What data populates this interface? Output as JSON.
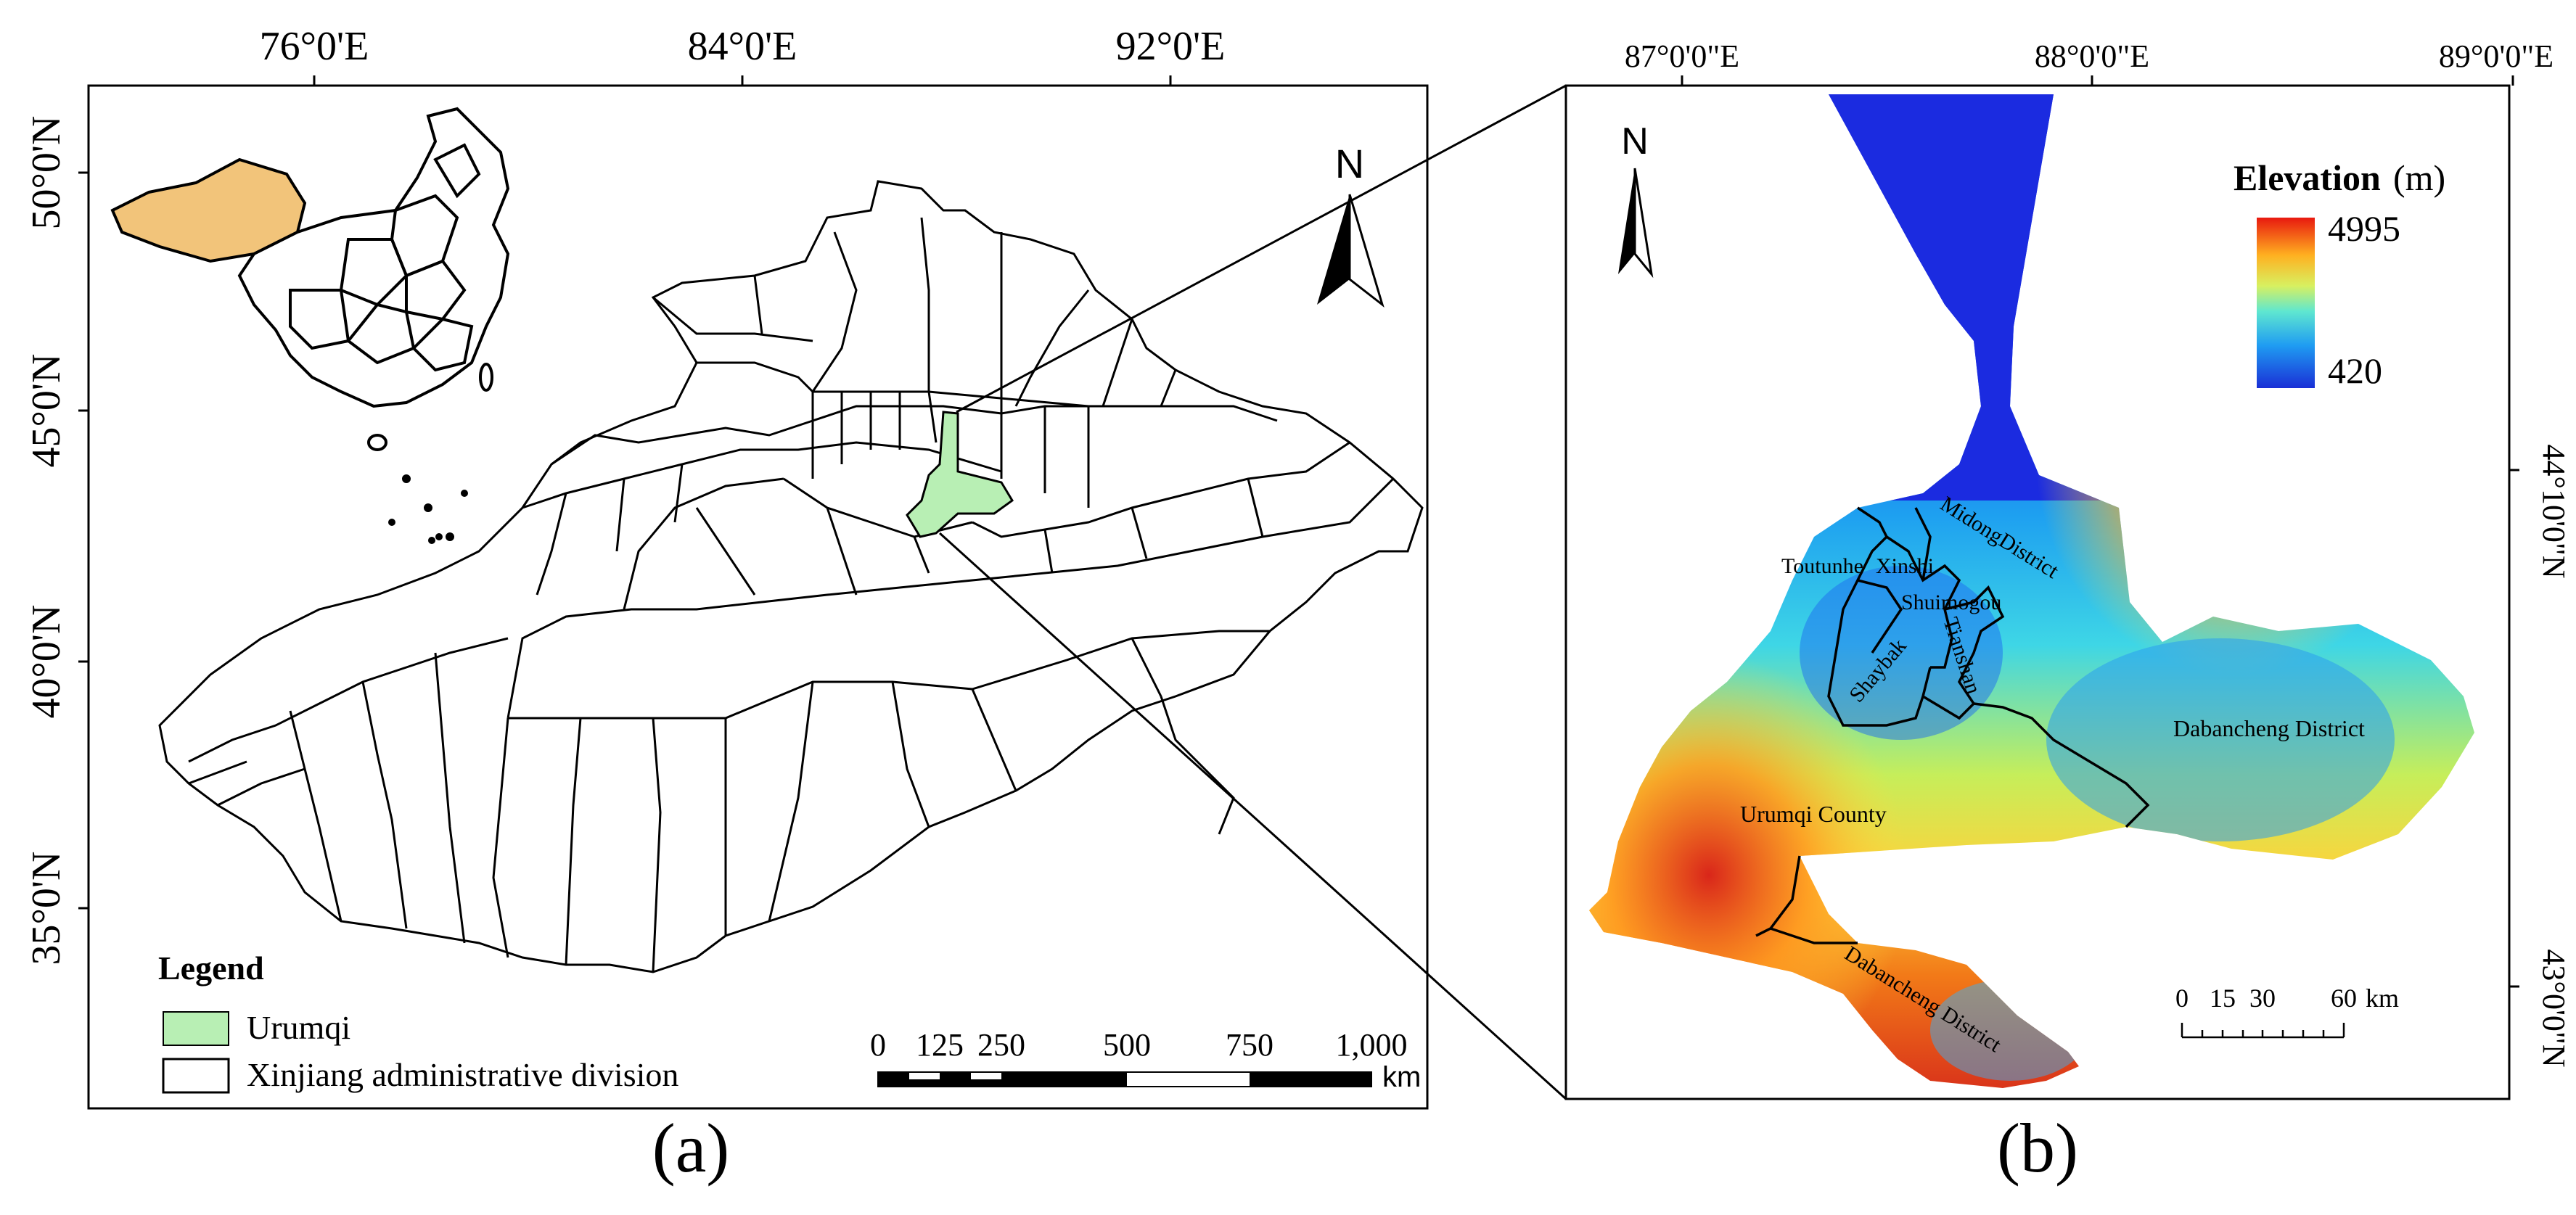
{
  "panel_a": {
    "caption": "(a)",
    "top_ticks": [
      "76°0'E",
      "84°0'E",
      "92°0'E"
    ],
    "left_ticks": [
      "50°0'N",
      "45°0'N",
      "40°0'N",
      "35°0'N"
    ],
    "north_label": "N",
    "legend": {
      "title": "Legend",
      "items": [
        {
          "label": "Urumqi",
          "color": "#b8efb4"
        },
        {
          "label": "Xinjiang administrative division",
          "color": "#ffffff"
        }
      ]
    },
    "scalebar": {
      "ticks": [
        "0",
        "125",
        "250",
        "500",
        "750",
        "1,000"
      ],
      "unit": "km"
    },
    "inset_highlight_color": "#f2c47a",
    "urumqi_color": "#b8efb4"
  },
  "panel_b": {
    "caption": "(b)",
    "top_ticks": [
      "87°0'0\"E",
      "88°0'0\"E",
      "89°0'0\"E"
    ],
    "right_ticks": [
      "44°10'0\"N",
      "43°0'0\"N"
    ],
    "north_label": "N",
    "elevation_legend": {
      "title": "Elevation",
      "unit": "(m)",
      "max": "4995",
      "min": "420"
    },
    "district_labels": [
      "MidongDistrict",
      "Toutunhe",
      "Xinshi",
      "Shuimogou",
      "Shaybak",
      "Tianshan",
      "Dabancheng District",
      "Urumqi County",
      "Dabancheng District"
    ],
    "scalebar": {
      "ticks": [
        "0",
        "15",
        "30",
        "60"
      ],
      "unit": "km"
    }
  }
}
